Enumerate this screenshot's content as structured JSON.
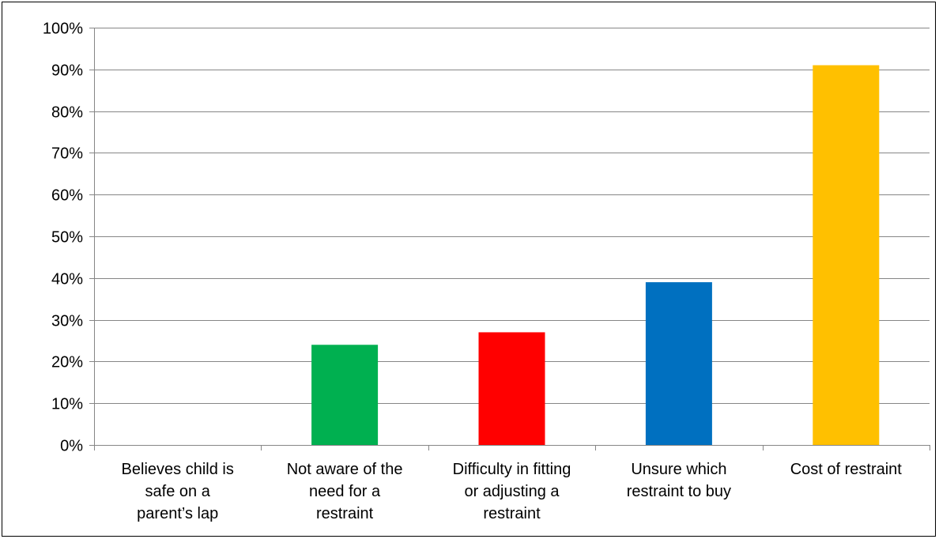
{
  "chart_data": {
    "type": "bar",
    "categories": [
      [
        "Believes  child is",
        "safe on a",
        "parent’s lap"
      ],
      [
        "Not aware of the",
        "need for a",
        "restraint"
      ],
      [
        "Difficulty in fitting",
        "or adjusting a",
        "restraint"
      ],
      [
        "Unsure which",
        "restraint to buy"
      ],
      [
        "Cost of restraint"
      ]
    ],
    "values": [
      0,
      24,
      27,
      39,
      91
    ],
    "colors": [
      "#4f81bd",
      "#00b050",
      "#ff0000",
      "#0070c0",
      "#ffc000"
    ],
    "ylim": [
      0,
      100
    ],
    "yticks": [
      0,
      10,
      20,
      30,
      40,
      50,
      60,
      70,
      80,
      90,
      100
    ],
    "ytick_labels": [
      "0%",
      "10%",
      "20%",
      "30%",
      "40%",
      "50%",
      "60%",
      "70%",
      "80%",
      "90%",
      "100%"
    ],
    "grid": true,
    "legend": "none"
  }
}
